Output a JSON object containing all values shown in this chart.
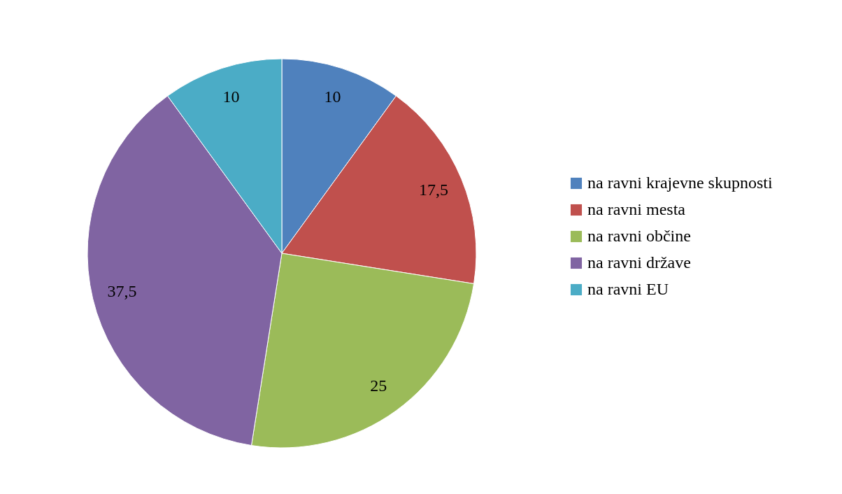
{
  "chart_data": {
    "type": "pie",
    "categories": [
      "na ravni krajevne skupnosti",
      "na ravni mesta",
      "na ravni občine",
      "na ravni države",
      "na ravni EU"
    ],
    "values": [
      10,
      17.5,
      25,
      37.5,
      10
    ],
    "colors": [
      "#4f81bd",
      "#c0504d",
      "#9bbb59",
      "#8064a2",
      "#4bacc6"
    ],
    "value_labels": [
      "10",
      "17,5",
      "25",
      "37,5",
      "10"
    ],
    "legend": "right"
  }
}
